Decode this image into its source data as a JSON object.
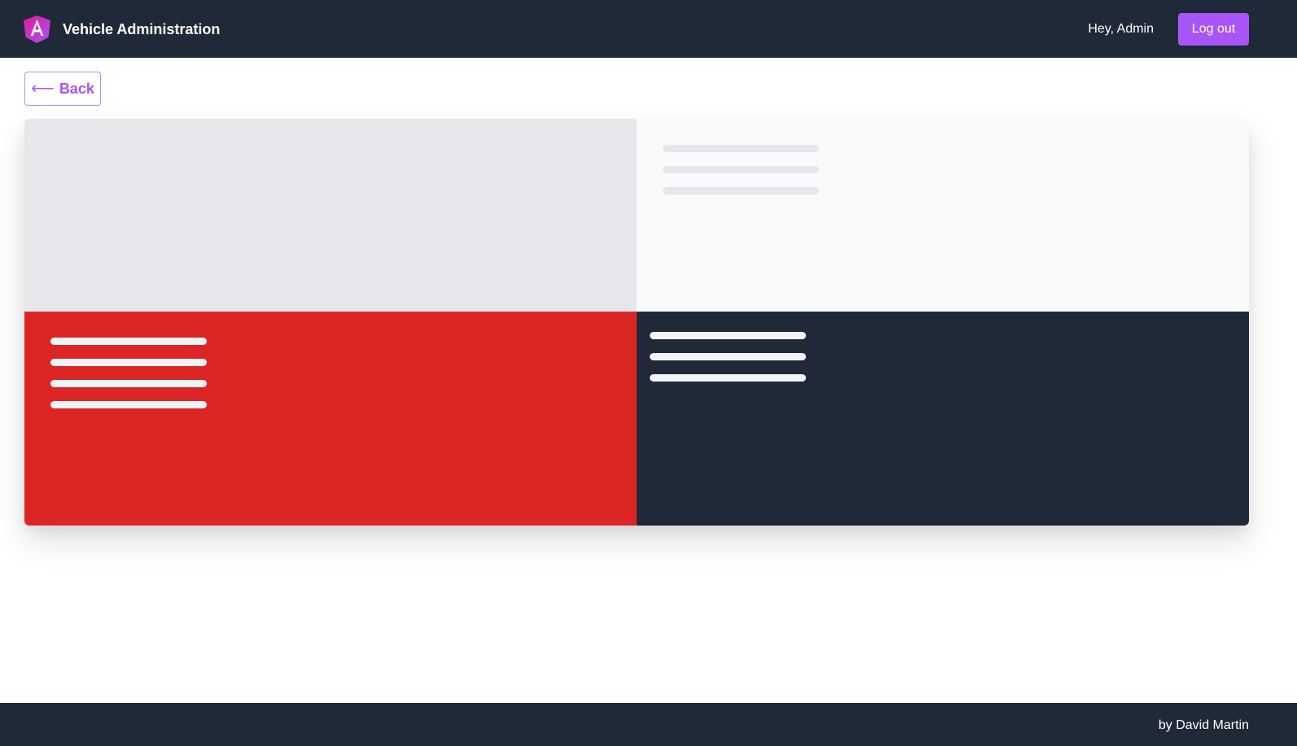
{
  "header": {
    "logo_icon": "angular-logo-icon",
    "title": "Vehicle Administration",
    "greeting": "Hey, Admin",
    "logout_label": "Log out",
    "background": "#1f2937",
    "accent": "#a855f7"
  },
  "nav": {
    "back_icon": "arrow-left-icon",
    "back_label": "Back"
  },
  "card": {
    "state": "loading-skeleton",
    "panels": [
      {
        "name": "image-placeholder",
        "color": "#e5e7eb"
      },
      {
        "name": "details-placeholder",
        "color": "#f9fafb"
      },
      {
        "name": "status-placeholder",
        "color": "#dc2626"
      },
      {
        "name": "info-placeholder",
        "color": "#1f2937"
      }
    ]
  },
  "footer": {
    "credit": "by David Martin"
  }
}
